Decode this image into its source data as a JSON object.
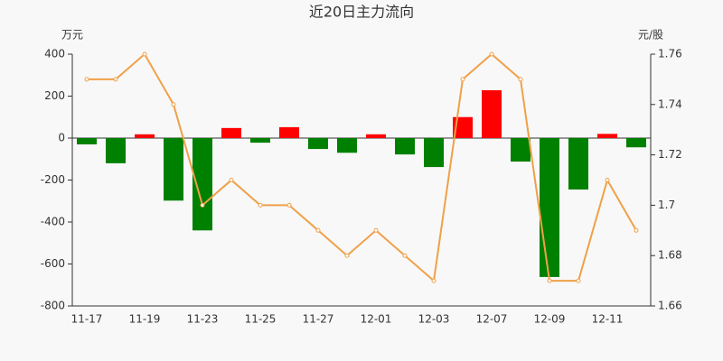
{
  "chart_data": {
    "type": "bar-line",
    "title": "近20日主力流向",
    "y_label": "万元",
    "y2_label": "元/股",
    "categories": [
      "11-17",
      null,
      "11-19",
      null,
      "11-23",
      null,
      "11-25",
      null,
      "11-27",
      null,
      "12-01",
      null,
      "12-03",
      null,
      "12-07",
      null,
      "12-09",
      null,
      "12-11",
      null
    ],
    "series": [
      {
        "type": "bar",
        "positive_color": "#ff0000",
        "negative_color": "#008000",
        "values": [
          -30,
          -120,
          18,
          -298,
          -440,
          48,
          -22,
          52,
          -52,
          -70,
          18,
          -78,
          -138,
          100,
          228,
          -112,
          -662,
          -245,
          20,
          -44
        ]
      },
      {
        "type": "line",
        "axis": "y2",
        "color": "#f0a048",
        "values": [
          1.75,
          1.75,
          1.76,
          1.74,
          1.7,
          1.71,
          1.7,
          1.7,
          1.69,
          1.68,
          1.69,
          1.68,
          1.67,
          1.75,
          1.76,
          1.75,
          1.67,
          1.67,
          1.71,
          1.69
        ]
      }
    ],
    "ylim": [
      -800,
      400
    ],
    "yticks": [
      400,
      200,
      0,
      -200,
      -400,
      -600,
      -800
    ],
    "y2lim": [
      1.66,
      1.76
    ],
    "y2ticks": [
      1.76,
      1.74,
      1.72,
      1.7,
      1.68,
      1.66
    ]
  }
}
